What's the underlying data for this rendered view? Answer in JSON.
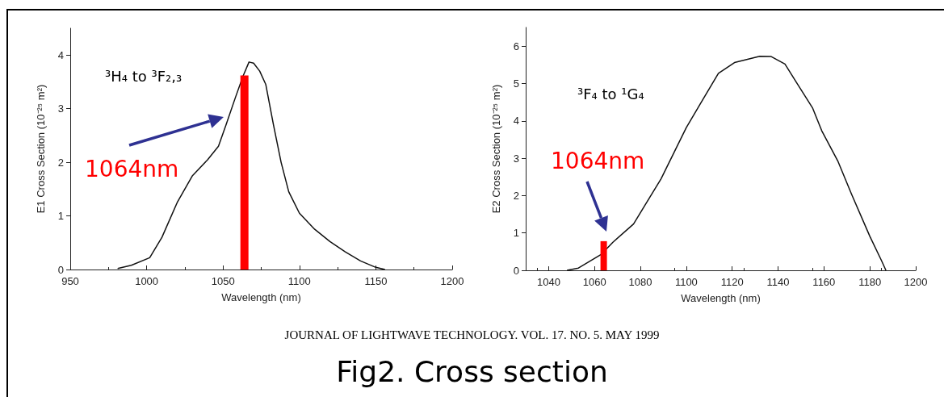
{
  "chart_data": [
    {
      "type": "line",
      "xlabel": "Wavelength (nm)",
      "ylabel": "E1 Cross Section (10⁻²⁵ m²)",
      "xlim": [
        950,
        1200
      ],
      "xticks": [
        950,
        1000,
        1050,
        1100,
        1150,
        1200
      ],
      "ylim": [
        0,
        4.5
      ],
      "yticks": [
        0,
        1,
        2,
        3,
        4
      ],
      "grid": false,
      "marker": "none",
      "line_style": "solid",
      "annotations": [
        "³H₄ to ³F₂,₃",
        "1064nm"
      ],
      "series": [
        {
          "color": "#111111",
          "x": [
            981,
            990,
            1002,
            1010,
            1020,
            1030,
            1040,
            1047,
            1052,
            1058,
            1063,
            1067,
            1070,
            1074,
            1078,
            1083,
            1088,
            1093,
            1100,
            1110,
            1120,
            1130,
            1140,
            1150,
            1156
          ],
          "values": [
            0.02,
            0.08,
            0.22,
            0.6,
            1.25,
            1.75,
            2.05,
            2.3,
            2.7,
            3.2,
            3.6,
            3.87,
            3.85,
            3.7,
            3.45,
            2.7,
            2.0,
            1.45,
            1.05,
            0.75,
            0.52,
            0.33,
            0.16,
            0.04,
            0
          ]
        },
        {
          "type": "bar",
          "color": "#ff0000",
          "x": [
            1064
          ],
          "values": [
            3.62
          ]
        }
      ]
    },
    {
      "type": "line",
      "xlabel": "Wavelength (nm)",
      "ylabel": "E2 Cross Section (10⁻²⁵ m²)",
      "xlim": [
        1030,
        1200
      ],
      "xticks": [
        1040,
        1060,
        1080,
        1100,
        1120,
        1140,
        1160,
        1180,
        1200
      ],
      "ylim": [
        0,
        6.5
      ],
      "yticks": [
        0,
        1,
        2,
        3,
        4,
        5,
        6
      ],
      "grid": false,
      "marker": "none",
      "line_style": "solid",
      "annotations": [
        "³F₄ to ¹G₄",
        "1064nm",
        "JOURNAL OF LIGHTWAVE TECHNOLOGY. VOL. 17. NO. 5. MAY 1999",
        "Fig2. Cross section"
      ],
      "series": [
        {
          "color": "#111111",
          "x": [
            1048,
            1053,
            1063,
            1068,
            1077,
            1089,
            1100,
            1107,
            1114,
            1121,
            1132,
            1137,
            1143,
            1148,
            1155,
            1159,
            1166,
            1172,
            1180,
            1185,
            1187
          ],
          "values": [
            0,
            0.06,
            0.43,
            0.75,
            1.24,
            2.45,
            3.82,
            4.55,
            5.27,
            5.56,
            5.73,
            5.72,
            5.52,
            5.03,
            4.35,
            3.74,
            2.93,
            2.04,
            0.91,
            0.27,
            0
          ]
        },
        {
          "type": "bar",
          "color": "#ff0000",
          "x": [
            1064
          ],
          "values": [
            0.78
          ]
        }
      ]
    }
  ]
}
